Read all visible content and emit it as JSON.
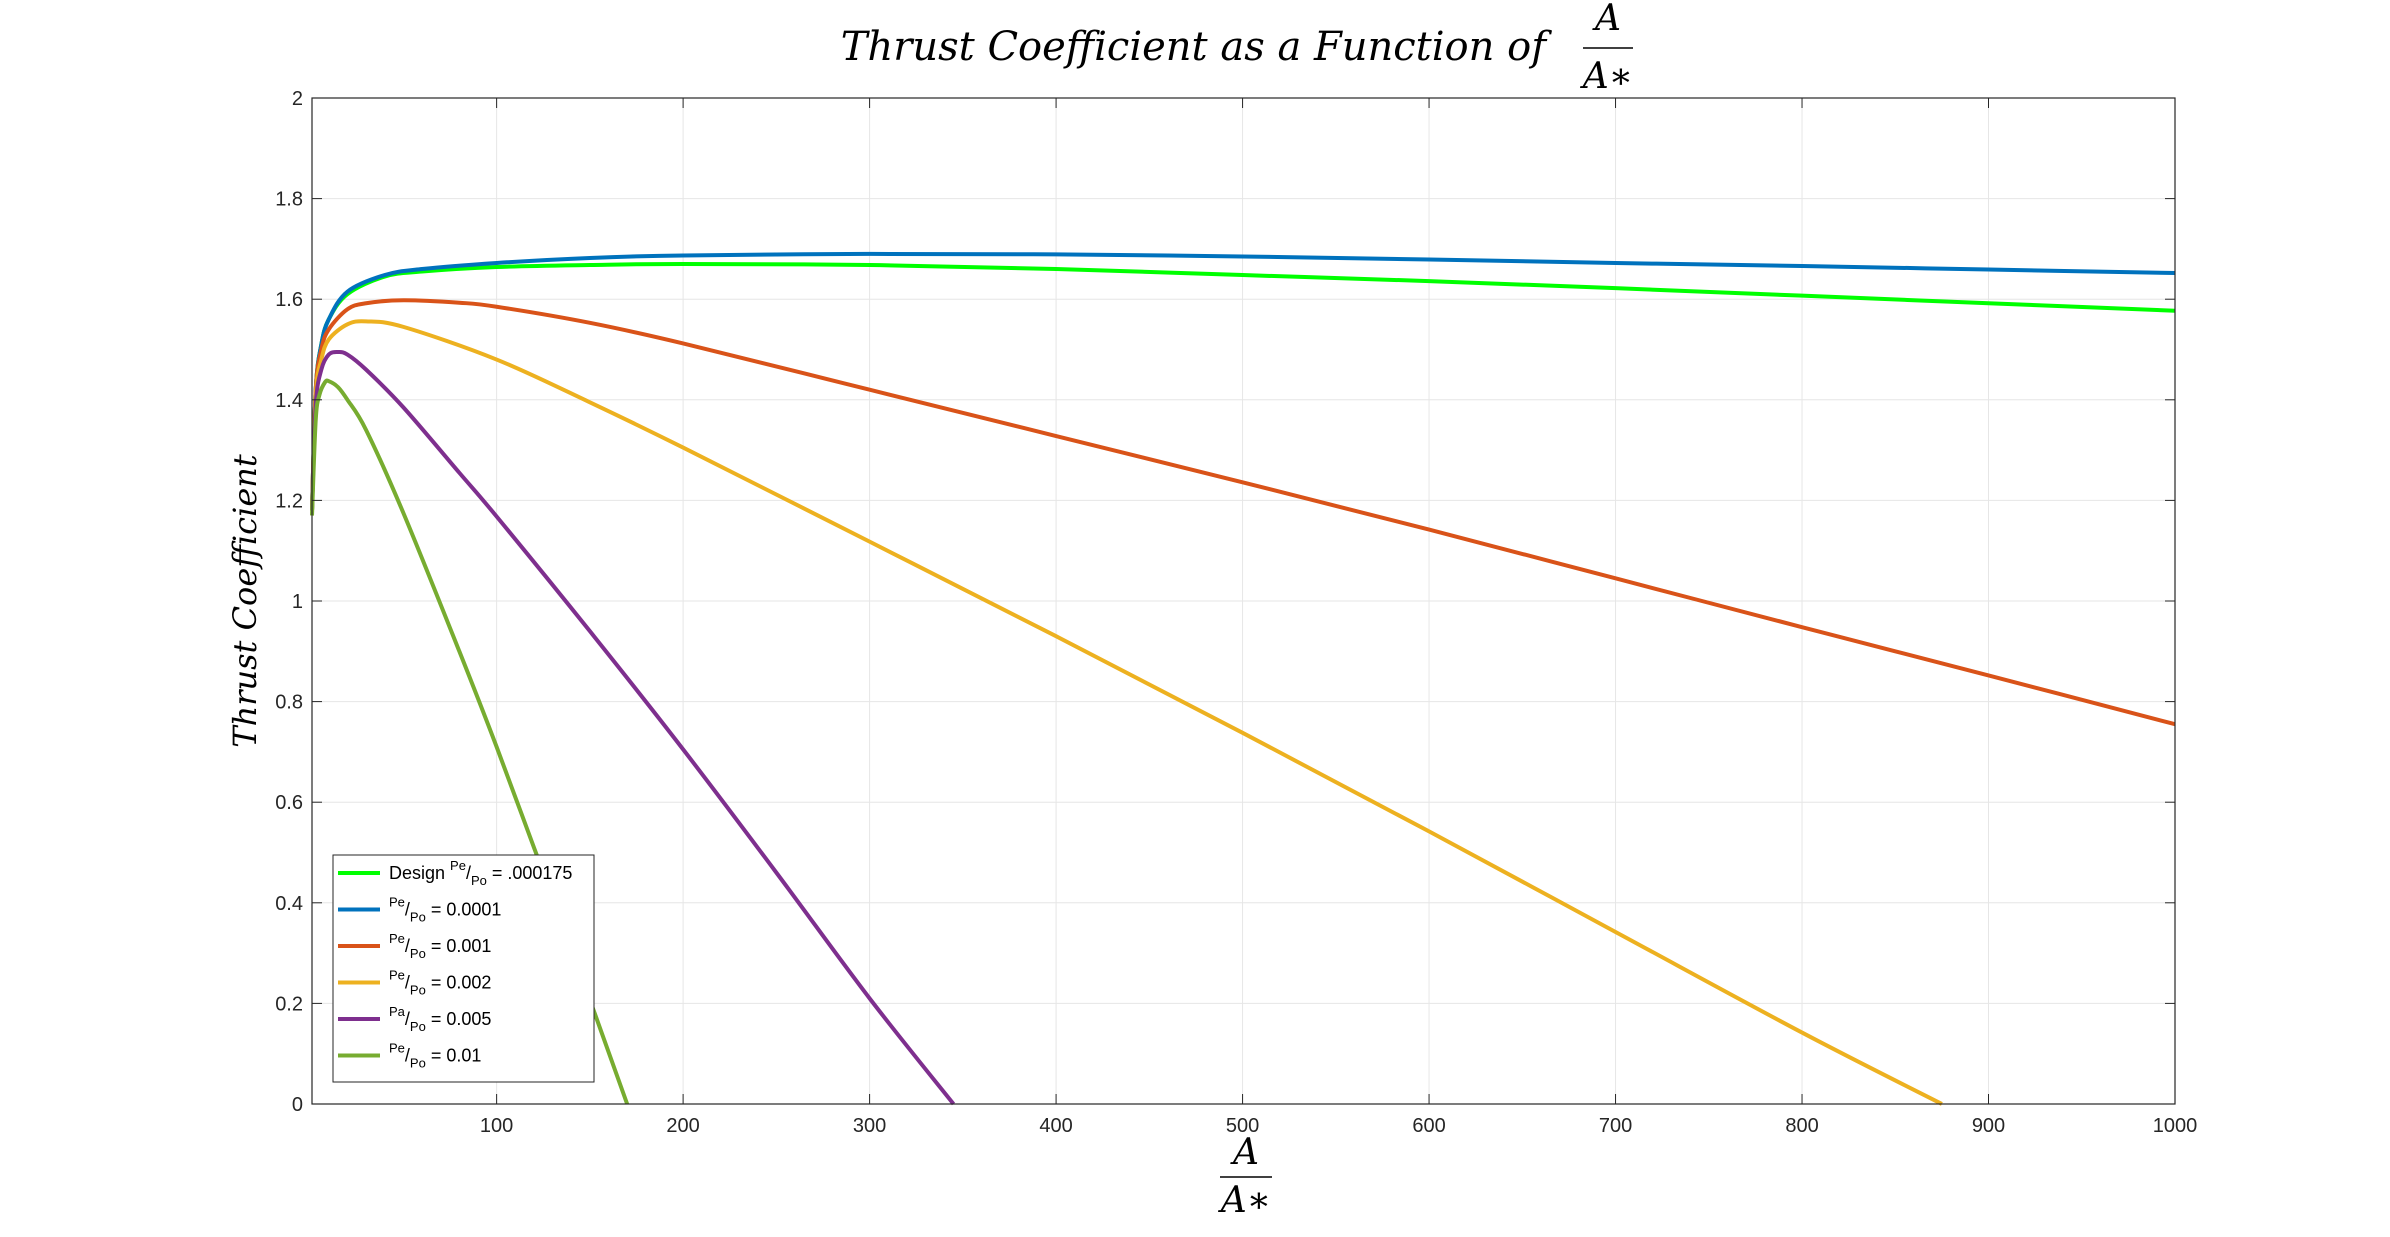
{
  "chart_data": {
    "type": "line",
    "title": {
      "prefix": "Thrust Coefficient as a Function of",
      "fraction_numerator": "A",
      "fraction_denominator": "A∗"
    },
    "xlabel": {
      "numerator": "A",
      "denominator": "A∗"
    },
    "ylabel": "Thrust Coefficient",
    "xlim": [
      1,
      1000
    ],
    "ylim": [
      0,
      2
    ],
    "x_ticks": [
      100,
      200,
      300,
      400,
      500,
      600,
      700,
      800,
      900,
      1000
    ],
    "y_ticks": [
      0,
      0.2,
      0.4,
      0.6,
      0.8,
      1,
      1.2,
      1.4,
      1.6,
      1.8,
      2
    ],
    "x_tick_labels": [
      "100",
      "200",
      "300",
      "400",
      "500",
      "600",
      "700",
      "800",
      "900",
      "1000"
    ],
    "y_tick_labels": [
      "0",
      "0.2",
      "0.4",
      "0.6",
      "0.8",
      "1",
      "1.2",
      "1.4",
      "1.6",
      "1.8",
      "2"
    ],
    "grid": true,
    "legend_position": "bottom-left",
    "series": [
      {
        "legend": {
          "prefix": "Design ",
          "num": "Pe",
          "den": "Po",
          "suffix": " = .000175"
        },
        "color": "#00ff00",
        "x": [
          1,
          3,
          6,
          10,
          20,
          40,
          60,
          100,
          150,
          200,
          300,
          400,
          500,
          600,
          700,
          800,
          900,
          1000
        ],
        "y": [
          1.18,
          1.42,
          1.51,
          1.56,
          1.61,
          1.645,
          1.655,
          1.664,
          1.668,
          1.67,
          1.668,
          1.66,
          1.648,
          1.636,
          1.622,
          1.607,
          1.592,
          1.577
        ]
      },
      {
        "legend": {
          "prefix": "",
          "num": "Pe",
          "den": "Po",
          "suffix": " = 0.0001"
        },
        "color": "#0072bd",
        "x": [
          1,
          3,
          6,
          10,
          20,
          40,
          60,
          100,
          150,
          200,
          300,
          400,
          500,
          600,
          700,
          800,
          900,
          1000
        ],
        "y": [
          1.18,
          1.42,
          1.51,
          1.56,
          1.615,
          1.648,
          1.66,
          1.672,
          1.682,
          1.687,
          1.69,
          1.689,
          1.685,
          1.679,
          1.672,
          1.666,
          1.659,
          1.652
        ]
      },
      {
        "legend": {
          "prefix": "",
          "num": "Pe",
          "den": "Po",
          "suffix": " = 0.001"
        },
        "color": "#d95319",
        "x": [
          1,
          3,
          6,
          10,
          20,
          30,
          50,
          80,
          100,
          150,
          200,
          300,
          400,
          500,
          600,
          700,
          800,
          900,
          1000
        ],
        "y": [
          1.18,
          1.42,
          1.5,
          1.54,
          1.58,
          1.592,
          1.598,
          1.593,
          1.585,
          1.553,
          1.512,
          1.42,
          1.328,
          1.236,
          1.142,
          1.045,
          0.948,
          0.852,
          0.755
        ]
      },
      {
        "legend": {
          "prefix": "",
          "num": "Pe",
          "den": "Po",
          "suffix": " = 0.002"
        },
        "color": "#edb120",
        "x": [
          1,
          3,
          6,
          10,
          20,
          30,
          50,
          100,
          150,
          200,
          300,
          400,
          500,
          600,
          700,
          800,
          875
        ],
        "y": [
          1.18,
          1.41,
          1.48,
          1.52,
          1.55,
          1.556,
          1.545,
          1.48,
          1.395,
          1.305,
          1.118,
          0.93,
          0.738,
          0.542,
          0.342,
          0.142,
          0
        ]
      },
      {
        "legend": {
          "prefix": "",
          "num": "Pa",
          "den": "Po",
          "suffix": " = 0.005"
        },
        "color": "#7e2f8e",
        "x": [
          1,
          3,
          6,
          10,
          15,
          20,
          30,
          50,
          80,
          100,
          150,
          200,
          250,
          300,
          345
        ],
        "y": [
          1.18,
          1.39,
          1.46,
          1.49,
          1.495,
          1.49,
          1.46,
          1.385,
          1.255,
          1.168,
          0.94,
          0.705,
          0.46,
          0.21,
          0
        ]
      },
      {
        "legend": {
          "prefix": "",
          "num": "Pe",
          "den": "Po",
          "suffix": " = 0.01"
        },
        "color": "#77ac30",
        "x": [
          1,
          3,
          5,
          8,
          10,
          15,
          20,
          30,
          50,
          80,
          100,
          120,
          140,
          170
        ],
        "y": [
          1.17,
          1.36,
          1.41,
          1.435,
          1.437,
          1.425,
          1.4,
          1.34,
          1.175,
          0.9,
          0.71,
          0.51,
          0.31,
          0
        ]
      }
    ]
  }
}
